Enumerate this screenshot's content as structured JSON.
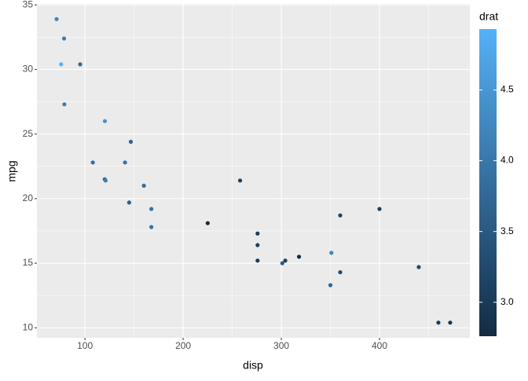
{
  "chart_data": {
    "type": "scatter",
    "x_label": "disp",
    "y_label": "mpg",
    "x": [
      160,
      160,
      108,
      258,
      360,
      225,
      360,
      146.7,
      140.8,
      167.6,
      167.6,
      275.8,
      275.8,
      275.8,
      472,
      460,
      440,
      78.7,
      75.7,
      71.1,
      120.1,
      318,
      304,
      350,
      400,
      79,
      120.3,
      95.1,
      351,
      145,
      301,
      121
    ],
    "y": [
      21.0,
      21.0,
      22.8,
      21.4,
      18.7,
      18.1,
      14.3,
      24.4,
      22.8,
      19.2,
      17.8,
      16.4,
      17.3,
      15.2,
      10.4,
      10.4,
      14.7,
      32.4,
      30.4,
      33.9,
      21.5,
      15.5,
      15.2,
      13.3,
      19.2,
      27.3,
      26.0,
      30.4,
      15.8,
      19.7,
      15.0,
      21.4
    ],
    "color_values": [
      3.9,
      3.9,
      3.85,
      3.08,
      3.15,
      2.76,
      3.21,
      3.69,
      3.92,
      3.92,
      3.92,
      3.07,
      3.07,
      3.07,
      2.93,
      3.0,
      3.23,
      4.08,
      4.93,
      4.22,
      3.7,
      2.76,
      3.15,
      3.73,
      3.08,
      4.08,
      4.43,
      3.77,
      4.22,
      3.62,
      3.54,
      4.11
    ],
    "xlim": [
      51.055,
      492.045
    ],
    "xticks": [
      100,
      200,
      300,
      400
    ],
    "ylim": [
      9.225,
      35.075
    ],
    "yticks": [
      10,
      15,
      20,
      25,
      30,
      35
    ],
    "grid": true,
    "colorbar": {
      "title": "drat",
      "lim": [
        2.76,
        4.93
      ],
      "low": "#132B43",
      "high": "#56B1F7",
      "ticks": [
        {
          "value": 3,
          "label": "3.0"
        },
        {
          "value": 3.5,
          "label": "3.5"
        },
        {
          "value": 4,
          "label": "4.0"
        },
        {
          "value": 4.5,
          "label": "4.5"
        }
      ]
    }
  }
}
